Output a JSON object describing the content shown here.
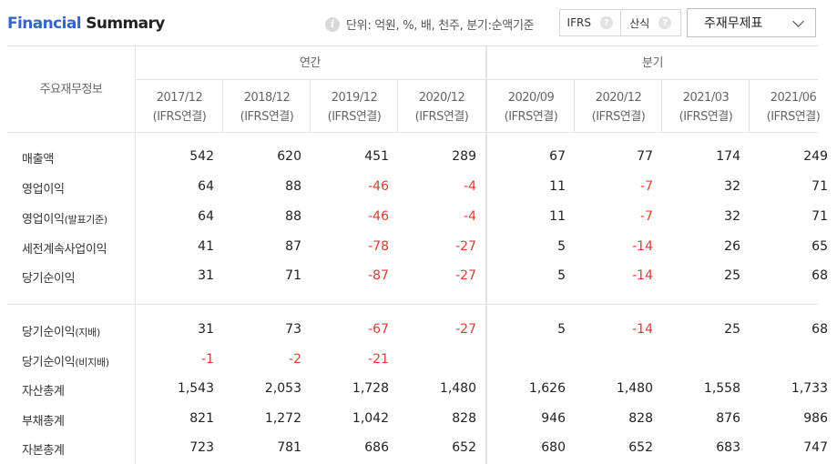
{
  "header": {
    "title_part1": "Financial",
    "title_part2": "Summary",
    "info_icon": "info-icon",
    "unit_text": "단위: 억원, %, 배, 천주, 분기:순액기준",
    "toggle_ifrs": "IFRS",
    "toggle_calc": "산식",
    "help_icon": "question-icon",
    "select_value": "주재무제표",
    "select_icon": "chevron-down-icon"
  },
  "table": {
    "corner_label": "주요재무정보",
    "group_annual": "연간",
    "group_quarter": "분기",
    "columns": [
      {
        "period": "2017/12",
        "basis": "(IFRS연결)"
      },
      {
        "period": "2018/12",
        "basis": "(IFRS연결)"
      },
      {
        "period": "2019/12",
        "basis": "(IFRS연결)"
      },
      {
        "period": "2020/12",
        "basis": "(IFRS연결)"
      },
      {
        "period": "2020/09",
        "basis": "(IFRS연결)"
      },
      {
        "period": "2020/12",
        "basis": "(IFRS연결)"
      },
      {
        "period": "2021/03",
        "basis": "(IFRS연결)"
      },
      {
        "period": "2021/06",
        "basis": "(IFRS연결)"
      }
    ],
    "rows": [
      {
        "label": "매출액",
        "suffix": "",
        "values": [
          "542",
          "620",
          "451",
          "289",
          "67",
          "77",
          "174",
          "249"
        ]
      },
      {
        "label": "영업이익",
        "suffix": "",
        "values": [
          "64",
          "88",
          "-46",
          "-4",
          "11",
          "-7",
          "32",
          "71"
        ]
      },
      {
        "label": "영업이익",
        "suffix": "(발표기준)",
        "values": [
          "64",
          "88",
          "-46",
          "-4",
          "11",
          "-7",
          "32",
          "71"
        ]
      },
      {
        "label": "세전계속사업이익",
        "suffix": "",
        "values": [
          "41",
          "87",
          "-78",
          "-27",
          "5",
          "-14",
          "26",
          "65"
        ]
      },
      {
        "label": "당기순이익",
        "suffix": "",
        "values": [
          "31",
          "71",
          "-87",
          "-27",
          "5",
          "-14",
          "25",
          "68"
        ]
      },
      {
        "label": "당기순이익",
        "suffix": "(지배)",
        "values": [
          "31",
          "73",
          "-67",
          "-27",
          "5",
          "-14",
          "25",
          "68"
        ]
      },
      {
        "label": "당기순이익",
        "suffix": "(비지배)",
        "values": [
          "-1",
          "-2",
          "-21",
          "",
          "",
          "",
          "",
          ""
        ]
      },
      {
        "label": "자산총계",
        "suffix": "",
        "values": [
          "1,543",
          "2,053",
          "1,728",
          "1,480",
          "1,626",
          "1,480",
          "1,558",
          "1,733"
        ]
      },
      {
        "label": "부채총계",
        "suffix": "",
        "values": [
          "821",
          "1,272",
          "1,042",
          "828",
          "946",
          "828",
          "876",
          "986"
        ]
      },
      {
        "label": "자본총계",
        "suffix": "",
        "values": [
          "723",
          "781",
          "686",
          "652",
          "680",
          "652",
          "683",
          "747"
        ]
      }
    ]
  },
  "colors": {
    "accent": "#3366cc",
    "negative": "#e03c31",
    "border": "#e3e3e3"
  }
}
